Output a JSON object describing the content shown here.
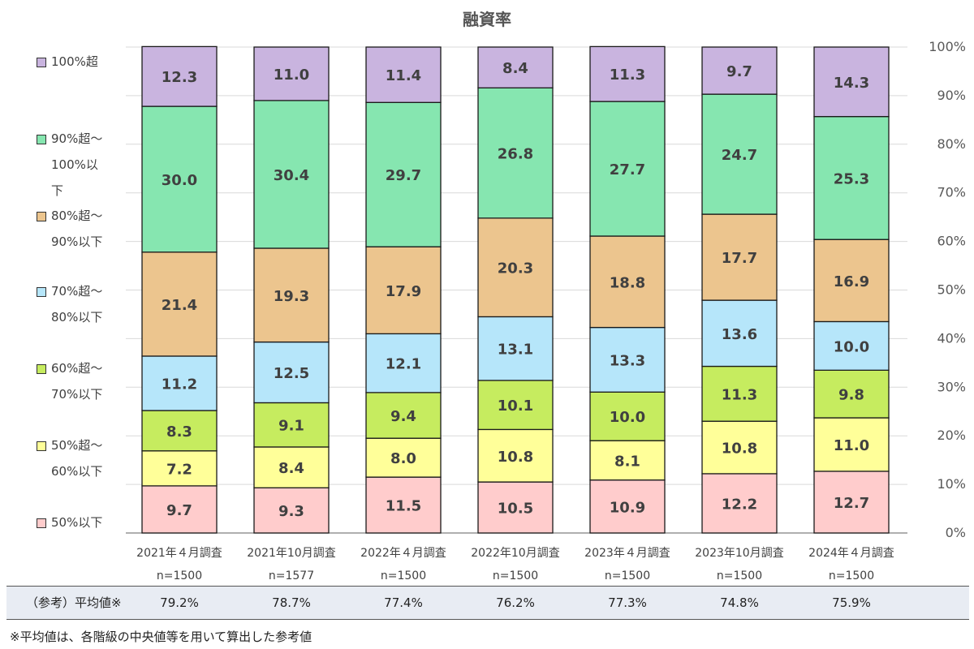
{
  "title": "融資率",
  "legend": [
    {
      "lines": [
        "100%超"
      ],
      "color": "#c9b4df"
    },
    {
      "lines": [
        "90%超～",
        "100%以",
        "下"
      ],
      "color": "#86e6b0"
    },
    {
      "lines": [
        "80%超～",
        "90%以下"
      ],
      "color": "#ecc58e"
    },
    {
      "lines": [
        "70%超～",
        "80%以下"
      ],
      "color": "#b6e6fa"
    },
    {
      "lines": [
        "60%超～",
        "70%以下"
      ],
      "color": "#c6ec5f"
    },
    {
      "lines": [
        "50%超～",
        "60%以下"
      ],
      "color": "#ffff99"
    },
    {
      "lines": [
        "50%以下"
      ],
      "color": "#ffcccc"
    }
  ],
  "chart_data": {
    "type": "bar",
    "stacked": true,
    "title": "融資率",
    "categories": [
      "2021年４月調査",
      "2021年10月調査",
      "2022年４月調査",
      "2022年10月調査",
      "2023年４月調査",
      "2023年10月調査",
      "2024年４月調査"
    ],
    "sample_sizes": [
      "n=1500",
      "n=1577",
      "n=1500",
      "n=1500",
      "n=1500",
      "n=1500",
      "n=1500"
    ],
    "series": [
      {
        "name": "50%以下",
        "color": "#ffcccc",
        "values": [
          9.7,
          9.3,
          11.5,
          10.5,
          10.9,
          12.2,
          12.7
        ]
      },
      {
        "name": "50%超～60%以下",
        "color": "#ffff99",
        "values": [
          7.2,
          8.4,
          8.0,
          10.8,
          8.1,
          10.8,
          11.0
        ]
      },
      {
        "name": "60%超～70%以下",
        "color": "#c6ec5f",
        "values": [
          8.3,
          9.1,
          9.4,
          10.1,
          10.0,
          11.3,
          9.8
        ]
      },
      {
        "name": "70%超～80%以下",
        "color": "#b6e6fa",
        "values": [
          11.2,
          12.5,
          12.1,
          13.1,
          13.3,
          13.6,
          10.0
        ]
      },
      {
        "name": "80%超～90%以下",
        "color": "#ecc58e",
        "values": [
          21.4,
          19.3,
          17.9,
          20.3,
          18.8,
          17.7,
          16.9
        ]
      },
      {
        "name": "90%超～100%以下",
        "color": "#86e6b0",
        "values": [
          30.0,
          30.4,
          29.7,
          26.8,
          27.7,
          24.7,
          25.3
        ]
      },
      {
        "name": "100%超",
        "color": "#c9b4df",
        "values": [
          12.3,
          11.0,
          11.4,
          8.4,
          11.3,
          9.7,
          14.3
        ]
      }
    ],
    "y_ticks": [
      "0%",
      "10%",
      "20%",
      "30%",
      "40%",
      "50%",
      "60%",
      "70%",
      "80%",
      "90%",
      "100%"
    ],
    "ylim": [
      0,
      100
    ],
    "y_axis_side": "right",
    "grid": true
  },
  "averages": {
    "label": "（参考）平均値※",
    "values": [
      "79.2%",
      "78.7%",
      "77.4%",
      "76.2%",
      "77.3%",
      "74.8%",
      "75.9%"
    ]
  },
  "footnote": "※平均値は、各階級の中央値等を用いて算出した参考値"
}
